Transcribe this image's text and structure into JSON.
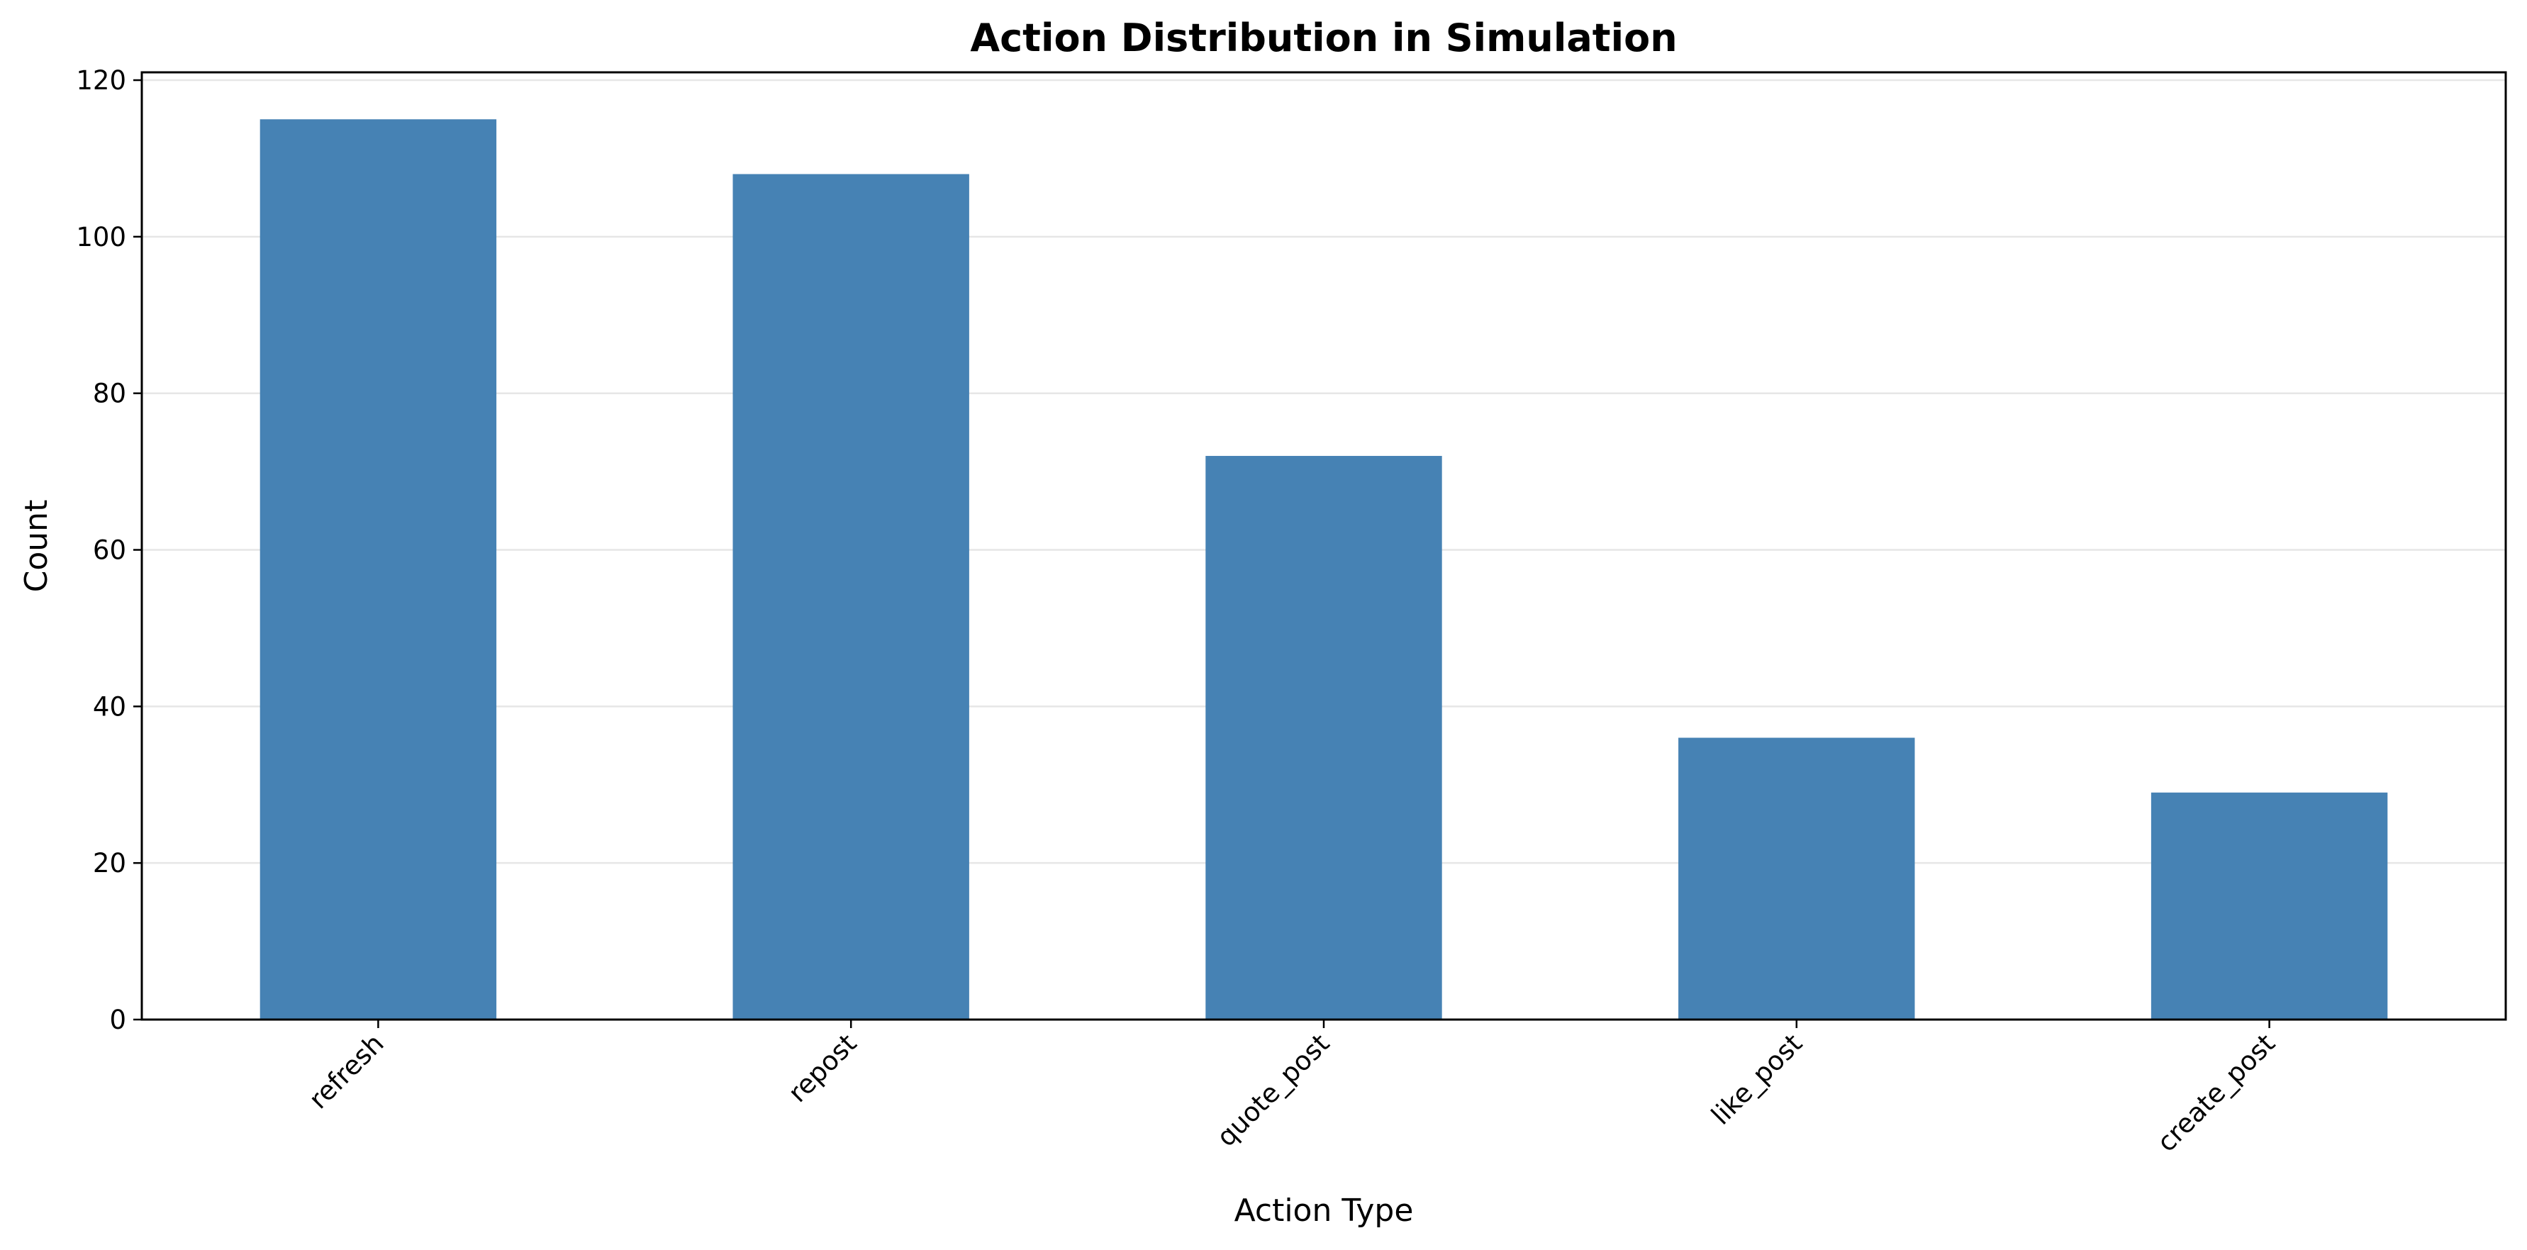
{
  "chart_data": {
    "type": "bar",
    "title": "Action Distribution in Simulation",
    "xlabel": "Action Type",
    "ylabel": "Count",
    "categories": [
      "refresh",
      "repost",
      "quote_post",
      "like_post",
      "create_post"
    ],
    "values": [
      115,
      108,
      72,
      36,
      29
    ],
    "ylim": [
      0,
      121
    ],
    "yticks": [
      0,
      20,
      40,
      60,
      80,
      100,
      120
    ],
    "grid": "y-axis, light gray",
    "legend": "none",
    "bar_color": "#4682b4"
  }
}
